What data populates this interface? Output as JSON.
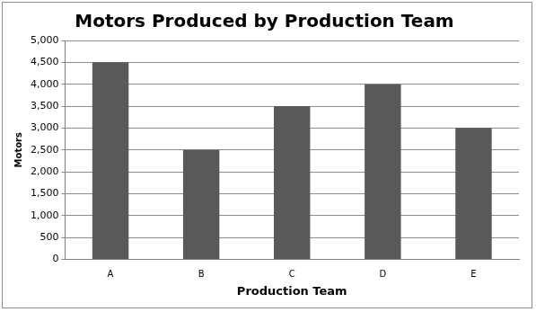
{
  "chart_data": {
    "type": "bar",
    "title": "Motors Produced by Production Team",
    "x_label": "Production Team",
    "y_label": "Motors",
    "categories": [
      "A",
      "B",
      "C",
      "D",
      "E"
    ],
    "values": [
      4500,
      2500,
      3500,
      4000,
      3000
    ],
    "color": "#595959",
    "ylim": [
      0,
      5000
    ],
    "yticks": [
      0,
      500,
      {
        "value": 1000,
        "label": "1,000"
      },
      {
        "value": 1500,
        "label": "1,500"
      },
      {
        "value": 2000,
        "label": "2,000"
      },
      {
        "value": 2500,
        "label": "2,500"
      },
      {
        "value": 3000,
        "label": "3,000"
      },
      {
        "value": 3500,
        "label": "3,500"
      },
      {
        "value": 4000,
        "label": "4,000"
      },
      {
        "value": 4500,
        "label": "4,500"
      },
      {
        "value": 5000,
        "label": "5,000"
      }
    ],
    "grid": true
  }
}
